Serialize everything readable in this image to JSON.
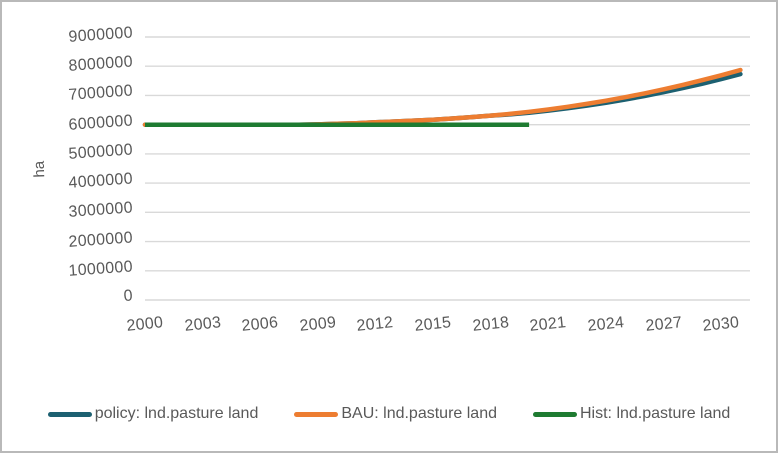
{
  "chart_data": {
    "type": "line",
    "title": "",
    "xlabel": "",
    "ylabel": "ha",
    "ylim": [
      0,
      9000000
    ],
    "yticks": [
      0,
      1000000,
      2000000,
      3000000,
      4000000,
      5000000,
      6000000,
      7000000,
      8000000,
      9000000
    ],
    "xticks": [
      2000,
      2003,
      2006,
      2009,
      2012,
      2015,
      2018,
      2021,
      2024,
      2027,
      2030
    ],
    "x_domain": [
      2000,
      2031.5
    ],
    "grid": "horizontal",
    "gridline_color": "#d9d9d9",
    "tick_label_color": "#595959",
    "legend_position": "bottom",
    "series": [
      {
        "name": "policy: lnd.pasture land",
        "color": "#1c6071",
        "x": [
          2000,
          2001,
          2002,
          2003,
          2004,
          2005,
          2006,
          2007,
          2008,
          2009,
          2010,
          2011,
          2012,
          2013,
          2014,
          2015,
          2016,
          2017,
          2018,
          2019,
          2020,
          2021,
          2022,
          2023,
          2024,
          2025,
          2026,
          2027,
          2028,
          2029,
          2030,
          2031
        ],
        "values": [
          6000000,
          6000000,
          6000000,
          6000000,
          6000000,
          6000000,
          6000000,
          6000000,
          6000000,
          6010000,
          6030000,
          6050000,
          6080000,
          6110000,
          6140000,
          6170000,
          6210000,
          6260000,
          6310000,
          6350000,
          6410000,
          6480000,
          6560000,
          6650000,
          6750000,
          6860000,
          6980000,
          7110000,
          7250000,
          7400000,
          7560000,
          7730000
        ]
      },
      {
        "name": "BAU: lnd.pasture land",
        "color": "#ed7d31",
        "x": [
          2000,
          2001,
          2002,
          2003,
          2004,
          2005,
          2006,
          2007,
          2008,
          2009,
          2010,
          2011,
          2012,
          2013,
          2014,
          2015,
          2016,
          2017,
          2018,
          2019,
          2020,
          2021,
          2022,
          2023,
          2024,
          2025,
          2026,
          2027,
          2028,
          2029,
          2030,
          2031
        ],
        "values": [
          6000000,
          6000000,
          6000000,
          6000000,
          6000000,
          6000000,
          6000000,
          6000000,
          6000000,
          6010000,
          6030000,
          6050000,
          6080000,
          6110000,
          6140000,
          6170000,
          6210000,
          6260000,
          6310000,
          6370000,
          6440000,
          6520000,
          6610000,
          6710000,
          6820000,
          6940000,
          7070000,
          7210000,
          7360000,
          7520000,
          7690000,
          7870000
        ]
      },
      {
        "name": "Hist: lnd.pasture land",
        "color": "#1e7b31",
        "x": [
          2000,
          2001,
          2002,
          2003,
          2004,
          2005,
          2006,
          2007,
          2008,
          2009,
          2010,
          2011,
          2012,
          2013,
          2014,
          2015,
          2016,
          2017,
          2018,
          2019,
          2020
        ],
        "values": [
          6000000,
          6000000,
          6000000,
          6000000,
          6000000,
          6000000,
          6000000,
          6000000,
          6000000,
          6000000,
          6000000,
          6000000,
          6000000,
          6000000,
          6000000,
          6000000,
          6000000,
          6000000,
          6000000,
          6000000,
          6000000
        ]
      }
    ]
  }
}
